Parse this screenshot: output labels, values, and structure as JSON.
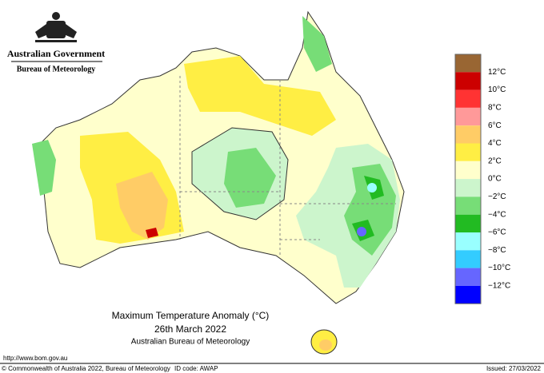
{
  "header": {
    "government": "Australian Government",
    "agency": "Bureau of Meteorology"
  },
  "map": {
    "title": "Maximum Temperature Anomaly (°C)",
    "date": "26th March 2022",
    "source": "Australian Bureau of Meteorology"
  },
  "legend": {
    "colors": [
      "#996633",
      "#cc0000",
      "#ff3333",
      "#ff9999",
      "#ffcc66",
      "#ffee44",
      "#ffffcc",
      "#ccf5cc",
      "#77dd77",
      "#22bb22",
      "#99ffff",
      "#33ccff",
      "#6666ff",
      "#0000ff"
    ],
    "labels": [
      "12°C",
      "10°C",
      "8°C",
      "6°C",
      "4°C",
      "2°C",
      "0°C",
      "−2°C",
      "−4°C",
      "−6°C",
      "−8°C",
      "−10°C",
      "−12°C"
    ]
  },
  "footer": {
    "url": "http://www.bom.gov.au",
    "copyright": "© Commonwealth of Australia 2022, Bureau of Meteorology",
    "id_code": "ID code: AWAP",
    "issued": "Issued: 27/03/2022"
  }
}
